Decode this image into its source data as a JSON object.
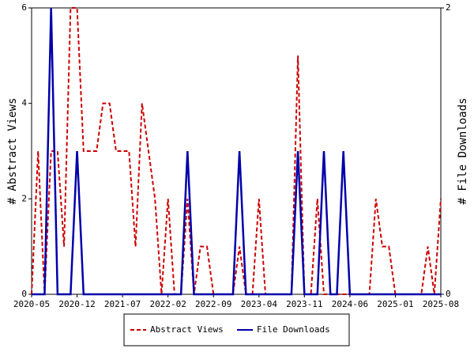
{
  "chart_data": {
    "type": "line",
    "x": [
      "2020-05",
      "2020-06",
      "2020-07",
      "2020-08",
      "2020-09",
      "2020-10",
      "2020-11",
      "2020-12",
      "2021-01",
      "2021-02",
      "2021-03",
      "2021-04",
      "2021-05",
      "2021-06",
      "2021-07",
      "2021-08",
      "2021-09",
      "2021-10",
      "2021-11",
      "2021-12",
      "2022-01",
      "2022-02",
      "2022-03",
      "2022-04",
      "2022-05",
      "2022-06",
      "2022-07",
      "2022-08",
      "2022-09",
      "2022-10",
      "2022-11",
      "2022-12",
      "2023-01",
      "2023-02",
      "2023-03",
      "2023-04",
      "2023-05",
      "2023-06",
      "2023-07",
      "2023-08",
      "2023-09",
      "2023-10",
      "2023-11",
      "2023-12",
      "2024-01",
      "2024-02",
      "2024-03",
      "2024-04",
      "2024-05",
      "2024-06",
      "2024-07",
      "2024-08",
      "2024-09",
      "2024-10",
      "2024-11",
      "2024-12",
      "2025-01",
      "2025-02",
      "2025-03",
      "2025-04",
      "2025-05",
      "2025-06",
      "2025-07",
      "2025-08"
    ],
    "xticks": [
      "2020-05",
      "2020-12",
      "2021-07",
      "2022-02",
      "2022-09",
      "2023-04",
      "2023-11",
      "2024-06",
      "2025-01",
      "2025-08"
    ],
    "y_label": "# Abstract Views",
    "y2_label": "# File Downloads",
    "ylim": [
      0,
      6
    ],
    "yticks": [
      0,
      2,
      4,
      6
    ],
    "y2lim": [
      0,
      2
    ],
    "y2ticks": [
      0,
      2
    ],
    "series": [
      {
        "name": "Abstract Views",
        "color": "#cc0000",
        "dash": true,
        "values": [
          0,
          3,
          0,
          3,
          3,
          1,
          6,
          6,
          3,
          3,
          3,
          4,
          4,
          3,
          3,
          3,
          1,
          4,
          3,
          2,
          0,
          2,
          0,
          0,
          2,
          0,
          1,
          1,
          0,
          0,
          0,
          0,
          1,
          0,
          0,
          2,
          0,
          0,
          0,
          0,
          0,
          5,
          0,
          0,
          2,
          0,
          0,
          0,
          0,
          0,
          0,
          0,
          0,
          2,
          1,
          1,
          0,
          0,
          0,
          0,
          0,
          1,
          0,
          2
        ]
      },
      {
        "name": "File Downloads",
        "color": "#0000aa",
        "axis": "y2",
        "values": [
          0,
          0,
          0,
          2,
          0,
          0,
          0,
          1,
          0,
          0,
          0,
          0,
          0,
          0,
          0,
          0,
          0,
          0,
          0,
          0,
          0,
          0,
          0,
          0,
          1,
          0,
          0,
          0,
          0,
          0,
          0,
          0,
          1,
          0,
          0,
          0,
          0,
          0,
          0,
          0,
          0,
          1,
          0,
          0,
          0,
          1,
          0,
          0,
          1,
          0,
          0,
          0,
          0,
          0,
          0,
          0,
          0,
          0,
          0,
          0,
          0,
          0,
          0,
          0
        ]
      }
    ]
  }
}
